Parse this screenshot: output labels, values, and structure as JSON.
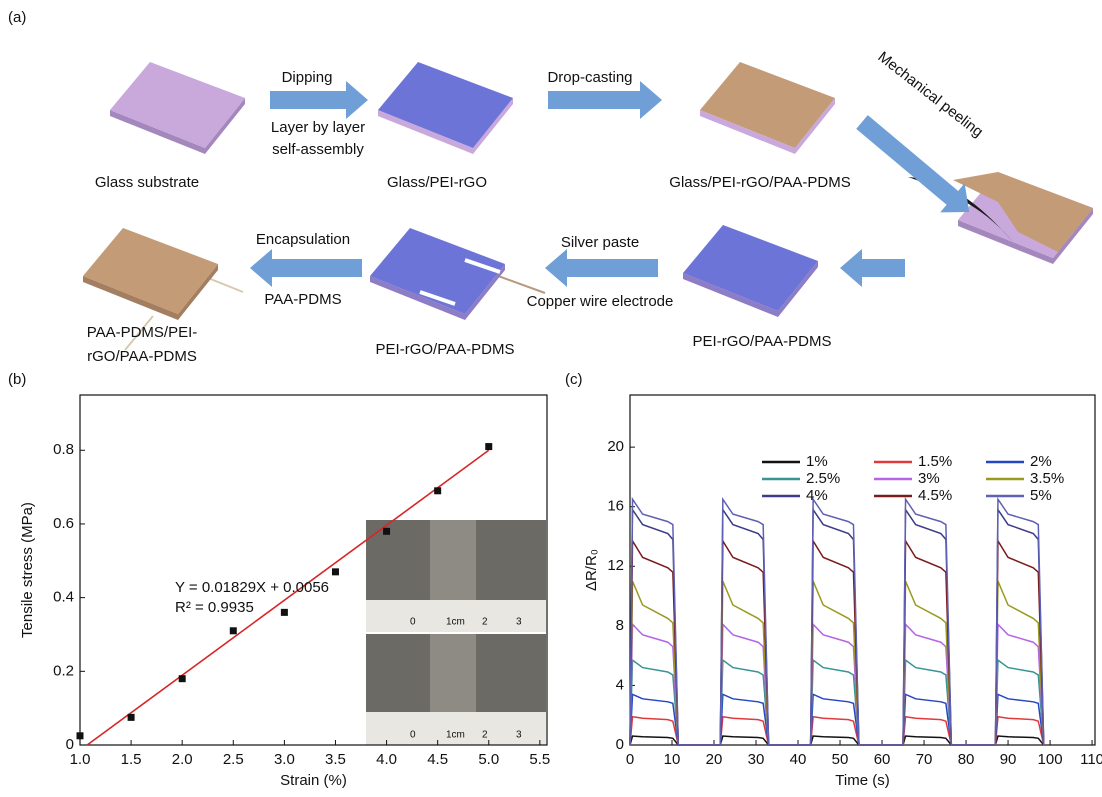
{
  "panel_labels": [
    "(a)",
    "(b)",
    "(c)"
  ],
  "diagram": {
    "stage_labels": [
      "Glass substrate",
      "Glass/PEI-rGO",
      "Glass/PEI-rGO/PAA-PDMS",
      "PEI-rGO/PAA-PDMS",
      "PEI-rGO/PAA-PDMS",
      "PAA-PDMS/PEI-",
      "rGO/PAA-PDMS"
    ],
    "process_labels": [
      "Dipping",
      "Layer by layer",
      "self-assembly",
      "Drop-casting",
      "Mechanical peeling",
      "Silver paste",
      "Copper wire electrode",
      "Encapsulation",
      "PAA-PDMS"
    ]
  },
  "inset": {
    "ruler_labels": [
      "0",
      "1cm",
      "2",
      "3"
    ]
  },
  "chart_data": [
    {
      "type": "scatter",
      "xlabel": "Strain (%)",
      "ylabel": "Tensile stress (MPa)",
      "x": [
        1.0,
        1.5,
        2.0,
        2.5,
        3.0,
        3.5,
        4.0,
        4.5,
        5.0
      ],
      "values": [
        0.025,
        0.075,
        0.18,
        0.31,
        0.36,
        0.47,
        0.58,
        0.69,
        0.81
      ],
      "color": "#111111",
      "fit": {
        "x": [
          1.07,
          5.0
        ],
        "values": [
          0,
          0.8
        ],
        "color": "#d62728"
      },
      "annotations": [
        "Y = 0.01829X + 0.0056",
        "R² = 0.9935"
      ],
      "xlim": [
        1.0,
        5.57
      ],
      "ylim": [
        0,
        0.95
      ],
      "xticks": [
        {
          "value": 1,
          "label": "1.0"
        },
        1.5,
        {
          "value": 2,
          "label": "2.0"
        },
        2.5,
        {
          "value": 3,
          "label": "3.0"
        },
        3.5,
        {
          "value": 4,
          "label": "4.0"
        },
        4.5,
        {
          "value": 5,
          "label": "5.0"
        },
        5.5
      ],
      "yticks": [
        0,
        0.2,
        0.4,
        0.6,
        0.8
      ]
    },
    {
      "type": "line",
      "xlabel": "Time (s)",
      "ylabel": "ΔR/R₀",
      "x": [
        0,
        0.6,
        3,
        9,
        10.2,
        11.5,
        21.5,
        22.1,
        24.5,
        30.5,
        31.7,
        33,
        43,
        43.6,
        46,
        52,
        53.2,
        54.5,
        65,
        65.6,
        68,
        74,
        75.2,
        76.5,
        87,
        87.6,
        90,
        96,
        97.2,
        98.5
      ],
      "series": [
        {
          "name": "1%",
          "color": "#111111",
          "values": [
            0,
            0.6,
            0.55,
            0.5,
            0.45,
            0,
            0,
            0.6,
            0.55,
            0.5,
            0.45,
            0,
            0,
            0.6,
            0.55,
            0.5,
            0.45,
            0,
            0,
            0.6,
            0.55,
            0.5,
            0.45,
            0,
            0,
            0.6,
            0.55,
            0.5,
            0.45,
            0
          ]
        },
        {
          "name": "1.5%",
          "color": "#e0393e",
          "values": [
            0,
            1.9,
            1.8,
            1.7,
            1.6,
            0,
            0,
            1.9,
            1.8,
            1.7,
            1.6,
            0,
            0,
            1.9,
            1.8,
            1.7,
            1.6,
            0,
            0,
            1.9,
            1.8,
            1.7,
            1.6,
            0,
            0,
            1.9,
            1.8,
            1.7,
            1.6,
            0
          ]
        },
        {
          "name": "2%",
          "color": "#2546c4",
          "values": [
            0,
            3.4,
            3.1,
            2.9,
            2.8,
            0,
            0,
            3.4,
            3.1,
            2.9,
            2.8,
            0,
            0,
            3.4,
            3.1,
            2.9,
            2.8,
            0,
            0,
            3.4,
            3.1,
            2.9,
            2.8,
            0,
            0,
            3.4,
            3.1,
            2.9,
            2.8,
            0
          ]
        },
        {
          "name": "2.5%",
          "color": "#3a9494",
          "values": [
            0,
            5.7,
            5.2,
            4.9,
            4.7,
            0,
            0,
            5.7,
            5.2,
            4.9,
            4.7,
            0,
            0,
            5.7,
            5.2,
            4.9,
            4.7,
            0,
            0,
            5.7,
            5.2,
            4.9,
            4.7,
            0,
            0,
            5.7,
            5.2,
            4.9,
            4.7,
            0
          ]
        },
        {
          "name": "3%",
          "color": "#b565e6",
          "values": [
            0,
            8.1,
            7.4,
            6.9,
            6.6,
            0,
            0,
            8.1,
            7.4,
            6.9,
            6.6,
            0,
            0,
            8.1,
            7.4,
            6.9,
            6.6,
            0,
            0,
            8.1,
            7.4,
            6.9,
            6.6,
            0,
            0,
            8.1,
            7.4,
            6.9,
            6.6,
            0
          ]
        },
        {
          "name": "3.5%",
          "color": "#9a9a1e",
          "values": [
            0,
            11.0,
            9.4,
            8.5,
            8.2,
            0,
            0,
            11.0,
            9.4,
            8.5,
            8.2,
            0,
            0,
            11.0,
            9.4,
            8.5,
            8.2,
            0,
            0,
            11.0,
            9.4,
            8.5,
            8.2,
            0,
            0,
            11.0,
            9.4,
            8.5,
            8.2,
            0
          ]
        },
        {
          "name": "4%",
          "color": "#3c3c88",
          "values": [
            0,
            15.8,
            14.8,
            14.2,
            13.8,
            0,
            0,
            15.8,
            14.8,
            14.2,
            13.8,
            0,
            0,
            15.8,
            14.8,
            14.2,
            13.8,
            0,
            0,
            15.8,
            14.8,
            14.2,
            13.8,
            0,
            0,
            15.8,
            14.8,
            14.2,
            13.8,
            0
          ]
        },
        {
          "name": "4.5%",
          "color": "#7a1c1c",
          "values": [
            0,
            13.7,
            12.6,
            11.9,
            11.6,
            0,
            0,
            13.7,
            12.6,
            11.9,
            11.6,
            0,
            0,
            13.7,
            12.6,
            11.9,
            11.6,
            0,
            0,
            13.7,
            12.6,
            11.9,
            11.6,
            0,
            0,
            13.7,
            12.6,
            11.9,
            11.6,
            0
          ]
        },
        {
          "name": "5%",
          "color": "#5e60b4",
          "values": [
            0,
            16.5,
            15.5,
            15.0,
            14.8,
            0,
            0,
            16.5,
            15.5,
            15.0,
            14.8,
            0,
            0,
            16.5,
            15.5,
            15.0,
            14.8,
            0,
            0,
            16.5,
            15.5,
            15.0,
            14.8,
            0,
            0,
            16.5,
            15.5,
            15.0,
            14.8,
            0
          ]
        }
      ],
      "xlim": [
        0,
        110.7
      ],
      "ylim": [
        0,
        23.5
      ],
      "xticks": [
        0,
        10,
        20,
        30,
        40,
        50,
        60,
        70,
        80,
        90,
        100,
        110
      ],
      "yticks": [
        0,
        4,
        8,
        12,
        16,
        20
      ]
    }
  ]
}
